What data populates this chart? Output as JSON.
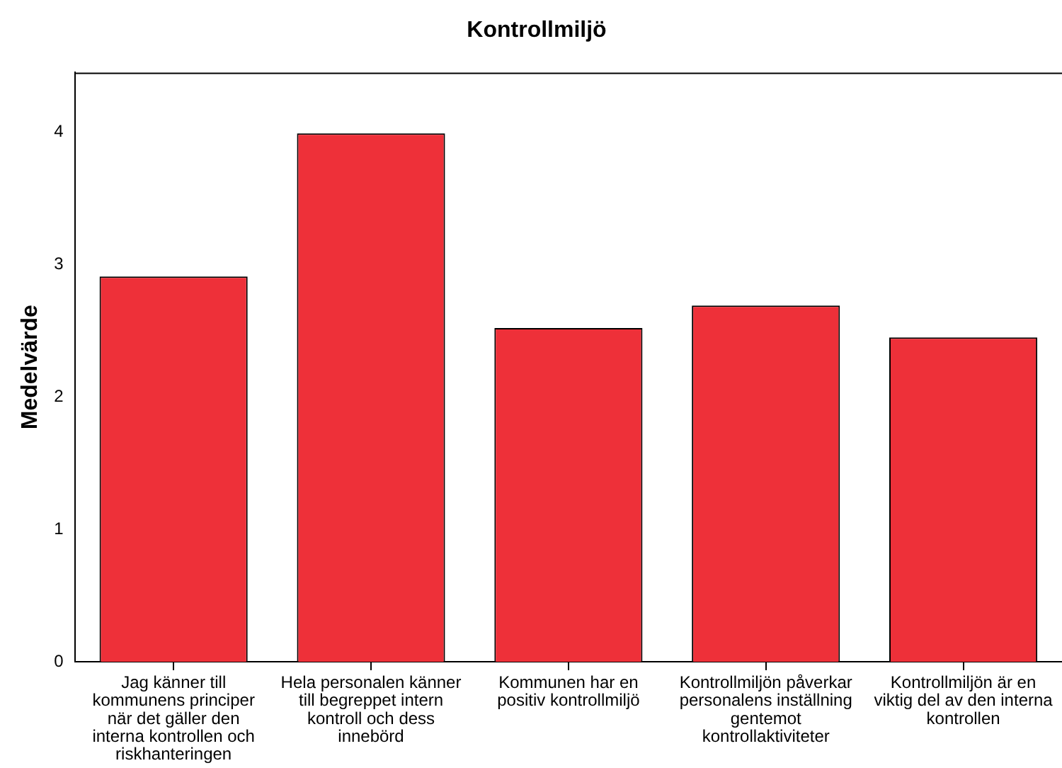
{
  "chart_data": {
    "type": "bar",
    "title": "Kontrollmiljö",
    "ylabel": "Medelvärde",
    "categories": [
      "Jag känner till kommunens principer när det gäller den interna kontrollen och riskhanteringen",
      "Hela personalen känner till begreppet intern kontroll och dess innebörd",
      "Kommunen har en positiv kontrollmiljö",
      "Kontrollmiljön påverkar personalens inställning gentemot kontrollaktiviteter",
      "Kontrollmiljön är en viktig del av den interna kontrollen"
    ],
    "values": [
      2.91,
      3.99,
      2.52,
      2.69,
      2.45
    ],
    "color": "#ee3039",
    "ylim": [
      0,
      4.45
    ],
    "yticks": [
      0,
      1,
      2,
      3,
      4
    ],
    "grid": false,
    "legend": false
  }
}
